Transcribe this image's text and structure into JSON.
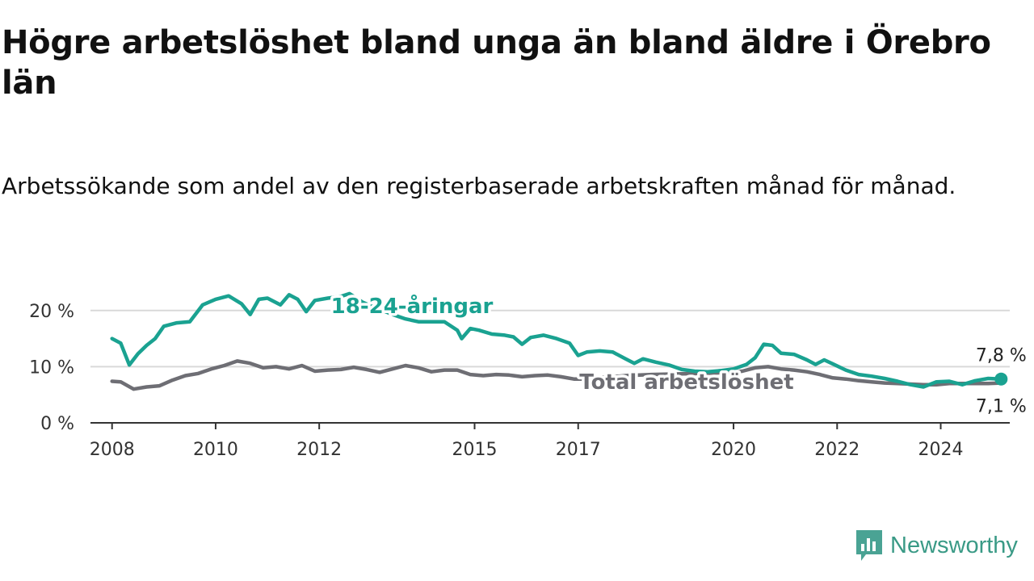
{
  "title": "Högre arbetslöshet bland unga än bland äldre i Örebro län",
  "subtitle": "Arbetssökande som andel av den registerbaserade arbetskraften månad för månad.",
  "brand": {
    "name": "Newsworthy",
    "icon": "newsworthy-logo-icon",
    "color": "#4aa394"
  },
  "chart_data": {
    "type": "line",
    "title": "Högre arbetslöshet bland unga än bland äldre i Örebro län",
    "subtitle": "Arbetssökande som andel av den registerbaserade arbetskraften månad för månad.",
    "xlabel": "",
    "ylabel": "",
    "x_ticks": [
      "2008",
      "2010",
      "2012",
      "2015",
      "2017",
      "2020",
      "2022",
      "2024"
    ],
    "y_ticks": [
      "0 %",
      "10 %",
      "20 %"
    ],
    "ylim": [
      0,
      25
    ],
    "xlim": [
      "2007-08",
      "2025-05"
    ],
    "grid": true,
    "legend": "inline labels",
    "series": [
      {
        "name": "18-24-åringar",
        "color": "#1aa291",
        "end_label": "7,8 %",
        "points": [
          [
            "2008-01",
            15.0
          ],
          [
            "2008-03",
            14.2
          ],
          [
            "2008-05",
            10.3
          ],
          [
            "2008-07",
            12.3
          ],
          [
            "2008-09",
            13.8
          ],
          [
            "2008-11",
            15.0
          ],
          [
            "2009-01",
            17.2
          ],
          [
            "2009-04",
            17.8
          ],
          [
            "2009-07",
            18.0
          ],
          [
            "2009-10",
            21.0
          ],
          [
            "2010-01",
            22.0
          ],
          [
            "2010-04",
            22.6
          ],
          [
            "2010-07",
            21.2
          ],
          [
            "2010-09",
            19.3
          ],
          [
            "2010-11",
            22.0
          ],
          [
            "2011-01",
            22.2
          ],
          [
            "2011-04",
            21.0
          ],
          [
            "2011-06",
            22.8
          ],
          [
            "2011-08",
            22.0
          ],
          [
            "2011-10",
            19.8
          ],
          [
            "2011-12",
            21.8
          ],
          [
            "2012-03",
            22.2
          ],
          [
            "2012-06",
            22.5
          ],
          [
            "2012-08",
            23.0
          ],
          [
            "2012-11",
            21.5
          ],
          [
            "2013-02",
            20.5
          ],
          [
            "2013-06",
            19.3
          ],
          [
            "2013-09",
            18.5
          ],
          [
            "2013-12",
            18.0
          ],
          [
            "2014-03",
            18.0
          ],
          [
            "2014-06",
            18.0
          ],
          [
            "2014-09",
            16.5
          ],
          [
            "2014-10",
            15.0
          ],
          [
            "2014-12",
            16.8
          ],
          [
            "2015-02",
            16.5
          ],
          [
            "2015-05",
            15.8
          ],
          [
            "2015-08",
            15.6
          ],
          [
            "2015-10",
            15.3
          ],
          [
            "2015-12",
            14.0
          ],
          [
            "2016-02",
            15.2
          ],
          [
            "2016-05",
            15.6
          ],
          [
            "2016-08",
            15.0
          ],
          [
            "2016-11",
            14.2
          ],
          [
            "2017-01",
            12.0
          ],
          [
            "2017-03",
            12.6
          ],
          [
            "2017-06",
            12.8
          ],
          [
            "2017-09",
            12.6
          ],
          [
            "2017-12",
            11.4
          ],
          [
            "2018-02",
            10.6
          ],
          [
            "2018-04",
            11.4
          ],
          [
            "2018-07",
            10.8
          ],
          [
            "2018-10",
            10.3
          ],
          [
            "2019-01",
            9.5
          ],
          [
            "2019-04",
            9.2
          ],
          [
            "2019-07",
            9.1
          ],
          [
            "2019-10",
            9.3
          ],
          [
            "2020-01",
            9.6
          ],
          [
            "2020-04",
            10.4
          ],
          [
            "2020-06",
            11.6
          ],
          [
            "2020-08",
            14.0
          ],
          [
            "2020-10",
            13.8
          ],
          [
            "2020-12",
            12.4
          ],
          [
            "2021-03",
            12.2
          ],
          [
            "2021-06",
            11.2
          ],
          [
            "2021-08",
            10.4
          ],
          [
            "2021-10",
            11.2
          ],
          [
            "2021-12",
            10.5
          ],
          [
            "2022-03",
            9.4
          ],
          [
            "2022-06",
            8.6
          ],
          [
            "2022-09",
            8.3
          ],
          [
            "2022-12",
            7.9
          ],
          [
            "2023-03",
            7.4
          ],
          [
            "2023-06",
            6.8
          ],
          [
            "2023-09",
            6.4
          ],
          [
            "2023-12",
            7.3
          ],
          [
            "2024-03",
            7.4
          ],
          [
            "2024-06",
            6.8
          ],
          [
            "2024-09",
            7.5
          ],
          [
            "2024-12",
            7.9
          ],
          [
            "2025-03",
            7.8
          ]
        ]
      },
      {
        "name": "Total arbetslöshet",
        "color": "#6e6e74",
        "end_label": "7,1 %",
        "points": [
          [
            "2008-01",
            7.4
          ],
          [
            "2008-03",
            7.3
          ],
          [
            "2008-06",
            6.0
          ],
          [
            "2008-09",
            6.4
          ],
          [
            "2008-12",
            6.6
          ],
          [
            "2009-03",
            7.6
          ],
          [
            "2009-06",
            8.4
          ],
          [
            "2009-09",
            8.8
          ],
          [
            "2009-12",
            9.6
          ],
          [
            "2010-03",
            10.2
          ],
          [
            "2010-06",
            11.0
          ],
          [
            "2010-09",
            10.6
          ],
          [
            "2010-12",
            9.8
          ],
          [
            "2011-03",
            10.0
          ],
          [
            "2011-06",
            9.6
          ],
          [
            "2011-09",
            10.2
          ],
          [
            "2011-12",
            9.2
          ],
          [
            "2012-03",
            9.4
          ],
          [
            "2012-06",
            9.5
          ],
          [
            "2012-09",
            9.9
          ],
          [
            "2012-12",
            9.5
          ],
          [
            "2013-03",
            9.0
          ],
          [
            "2013-06",
            9.6
          ],
          [
            "2013-09",
            10.2
          ],
          [
            "2013-12",
            9.8
          ],
          [
            "2014-03",
            9.1
          ],
          [
            "2014-06",
            9.4
          ],
          [
            "2014-09",
            9.4
          ],
          [
            "2014-12",
            8.6
          ],
          [
            "2015-03",
            8.4
          ],
          [
            "2015-06",
            8.6
          ],
          [
            "2015-09",
            8.5
          ],
          [
            "2015-12",
            8.2
          ],
          [
            "2016-03",
            8.4
          ],
          [
            "2016-06",
            8.5
          ],
          [
            "2016-09",
            8.2
          ],
          [
            "2016-12",
            7.8
          ],
          [
            "2017-03",
            7.8
          ],
          [
            "2017-06",
            8.1
          ],
          [
            "2017-09",
            8.2
          ],
          [
            "2017-12",
            8.4
          ],
          [
            "2018-06",
            8.6
          ],
          [
            "2018-12",
            8.7
          ],
          [
            "2019-06",
            8.8
          ],
          [
            "2019-12",
            9.0
          ],
          [
            "2020-03",
            9.2
          ],
          [
            "2020-06",
            9.8
          ],
          [
            "2020-09",
            10.0
          ],
          [
            "2020-12",
            9.6
          ],
          [
            "2021-03",
            9.4
          ],
          [
            "2021-06",
            9.1
          ],
          [
            "2021-09",
            8.6
          ],
          [
            "2021-12",
            8.0
          ],
          [
            "2022-03",
            7.8
          ],
          [
            "2022-06",
            7.5
          ],
          [
            "2022-09",
            7.3
          ],
          [
            "2022-12",
            7.1
          ],
          [
            "2023-03",
            7.0
          ],
          [
            "2023-06",
            6.9
          ],
          [
            "2023-09",
            6.8
          ],
          [
            "2023-12",
            6.8
          ],
          [
            "2024-03",
            7.0
          ],
          [
            "2024-06",
            7.0
          ],
          [
            "2024-09",
            7.0
          ],
          [
            "2024-12",
            7.0
          ],
          [
            "2025-03",
            7.1
          ]
        ]
      }
    ]
  }
}
